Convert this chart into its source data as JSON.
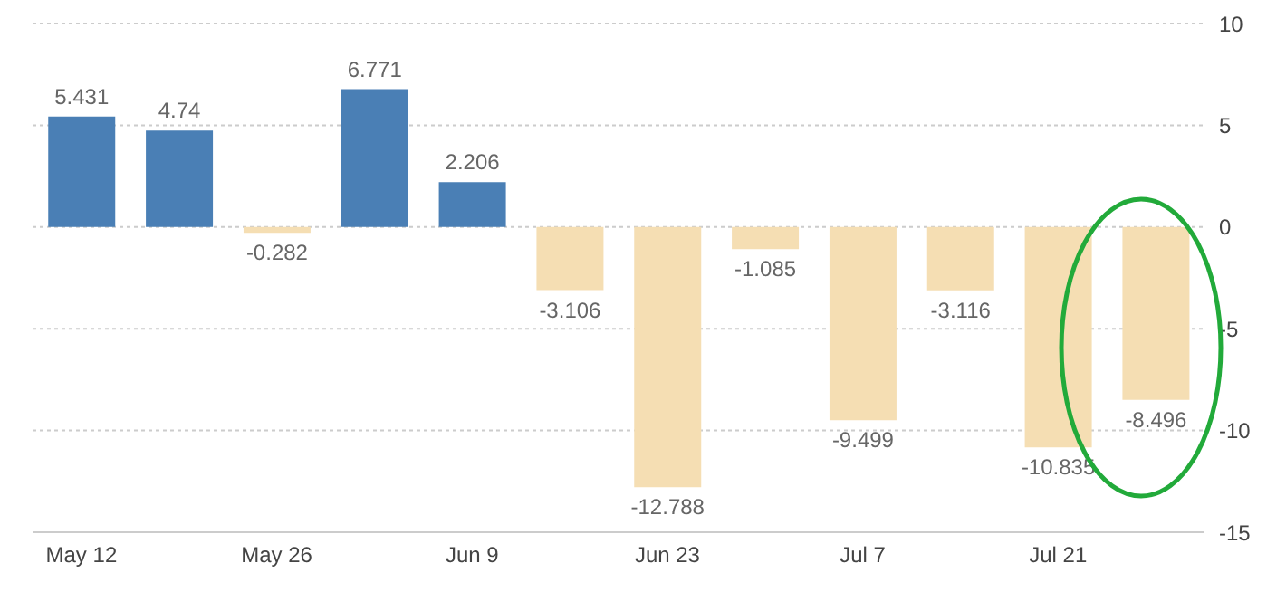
{
  "chart_data": {
    "type": "bar",
    "categories": [
      "May 12",
      null,
      "May 26",
      null,
      "Jun 9",
      null,
      "Jun 23",
      null,
      "Jul 7",
      null,
      "Jul 21",
      null
    ],
    "values": [
      5.431,
      4.74,
      -0.282,
      6.771,
      2.206,
      -3.106,
      -12.788,
      -1.085,
      -9.499,
      -3.116,
      -10.835,
      -8.496
    ],
    "colors": [
      "#4a7fb5",
      "#4a7fb5",
      "#f5deb3",
      "#4a7fb5",
      "#4a7fb5",
      "#f5deb3",
      "#f5deb3",
      "#f5deb3",
      "#f5deb3",
      "#f5deb3",
      "#f5deb3",
      "#f5deb3"
    ],
    "ylim": [
      -15,
      10
    ],
    "yticks": [
      -15,
      -10,
      -5,
      0,
      5,
      10
    ],
    "grid": "y",
    "data_labels": true,
    "legend": false
  }
}
